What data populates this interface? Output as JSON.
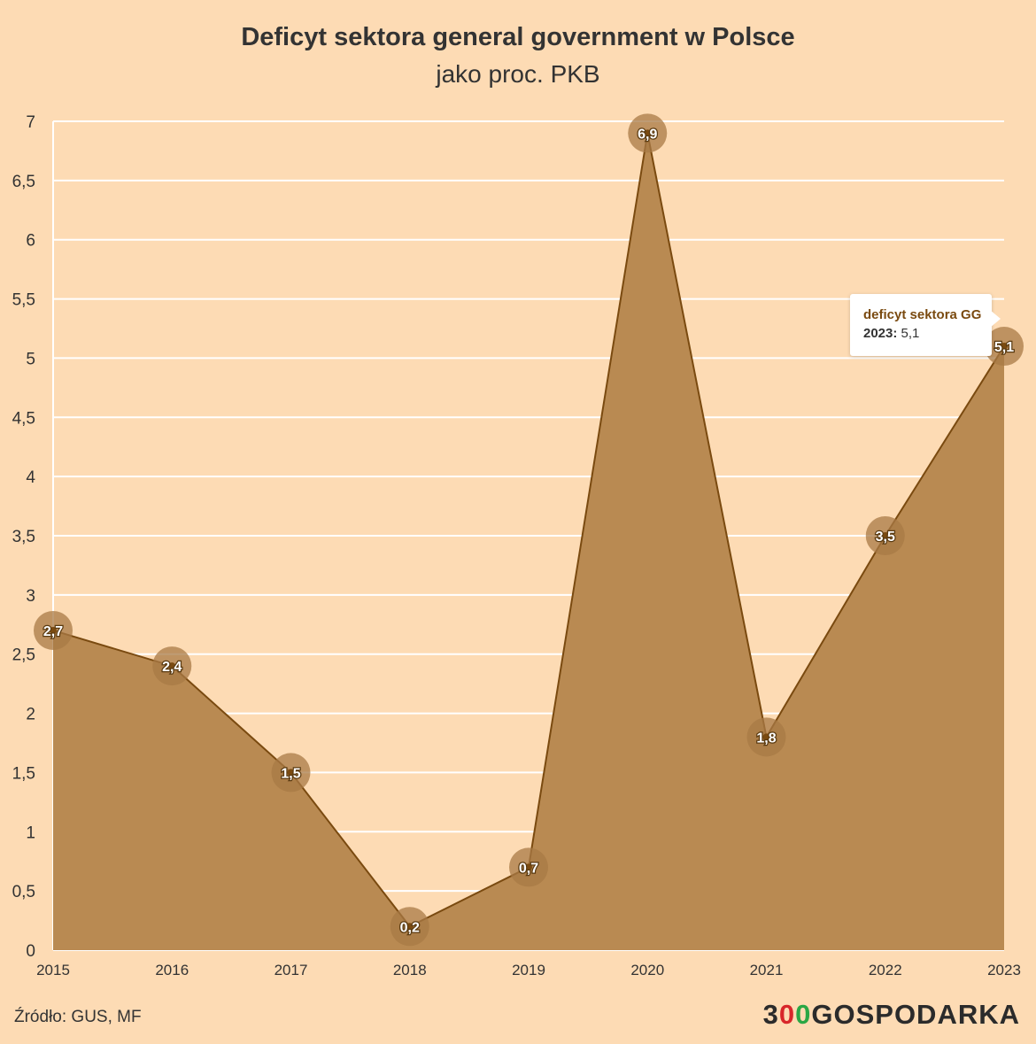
{
  "chart_data": {
    "type": "area",
    "title": "Deficyt sektora general government w Polsce",
    "subtitle": "jako proc. PKB",
    "categories": [
      "2015",
      "2016",
      "2017",
      "2018",
      "2019",
      "2020",
      "2021",
      "2022",
      "2023"
    ],
    "series": [
      {
        "name": "deficyt sektora GG",
        "values": [
          2.7,
          2.4,
          1.5,
          0.2,
          0.7,
          6.9,
          1.8,
          3.5,
          5.1
        ],
        "labels": [
          "2,7",
          "2,4",
          "1,5",
          "0,2",
          "0,7",
          "6,9",
          "1,8",
          "3,5",
          "5,1"
        ]
      }
    ],
    "ylim": [
      0,
      7
    ],
    "yticks": [
      0,
      0.5,
      1,
      1.5,
      2,
      2.5,
      3,
      3.5,
      4,
      4.5,
      5,
      5.5,
      6,
      6.5,
      7
    ],
    "ytick_labels": [
      "0",
      "0,5",
      "1",
      "1,5",
      "2",
      "2,5",
      "3",
      "3,5",
      "4",
      "4,5",
      "5",
      "5,5",
      "6",
      "6,5",
      "7"
    ],
    "grid": true,
    "xlabel": "",
    "ylabel": "",
    "colors": {
      "background": "#fddbb4",
      "area_fill": "#b98a52",
      "line": "#7a4a10",
      "marker": "#a87a46",
      "grid": "#ffffff",
      "tick_text": "#333333"
    }
  },
  "tooltip": {
    "series": "deficyt sektora GG",
    "year": "2023:",
    "value": "5,1"
  },
  "footer": {
    "source": "Źródło: GUS, MF",
    "logo_digit": "3",
    "logo_red": "0",
    "logo_green": "0",
    "logo_text": "GOSPODARKA"
  }
}
